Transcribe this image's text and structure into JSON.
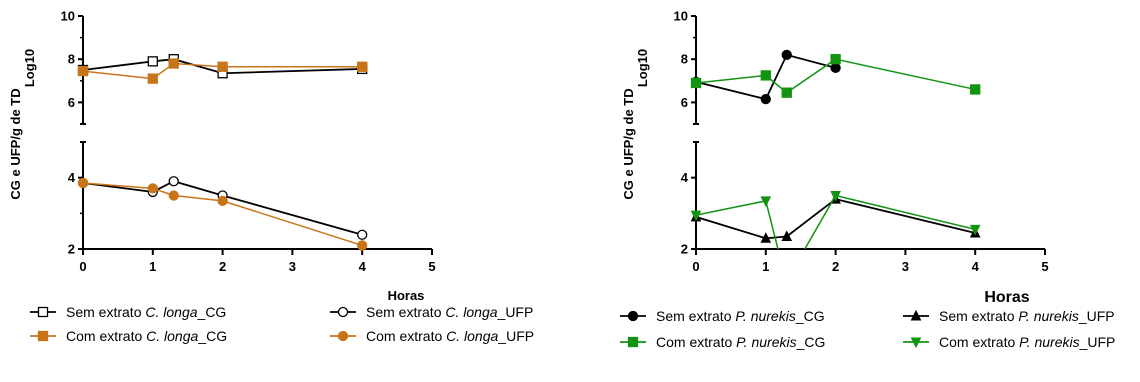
{
  "colors": {
    "black": "#000000",
    "orange": "#c8751a",
    "green": "#119411"
  },
  "chart_data": [
    {
      "type": "line",
      "ylabel_line1": "CG e UFP/g de TD",
      "ylabel_line2": "Log10",
      "xlabel": "Horas",
      "xlim": [
        0,
        5
      ],
      "x_ticks": [
        "0",
        "1",
        "2",
        "3",
        "4",
        "5"
      ],
      "upper_ylim": [
        5,
        10
      ],
      "upper_y_ticks": [
        "6",
        "8",
        "10"
      ],
      "lower_ylim": [
        2,
        5
      ],
      "lower_y_ticks": [
        "2",
        "4"
      ],
      "series": [
        {
          "name_prefix": "Sem extrato ",
          "name_species": "C. longa",
          "name_suffix": "_CG",
          "panel": "upper",
          "marker": "square",
          "filled": false,
          "color": "#000000",
          "x": [
            0,
            1,
            1.3,
            2,
            4
          ],
          "y": [
            7.5,
            7.9,
            8.0,
            7.35,
            7.55
          ]
        },
        {
          "name_prefix": "Sem extrato ",
          "name_species": "C. longa",
          "name_suffix": "_UFP",
          "panel": "lower",
          "marker": "circle",
          "filled": false,
          "color": "#000000",
          "x": [
            0,
            1,
            1.3,
            2,
            4
          ],
          "y": [
            3.85,
            3.6,
            3.9,
            3.5,
            2.4
          ]
        },
        {
          "name_prefix": "Com extrato ",
          "name_species": "C. longa",
          "name_suffix": "_CG",
          "panel": "upper",
          "marker": "square",
          "filled": true,
          "color": "#c8751a",
          "x": [
            0,
            1,
            1.3,
            2,
            4
          ],
          "y": [
            7.45,
            7.1,
            7.8,
            7.65,
            7.65
          ]
        },
        {
          "name_prefix": "Com extrato ",
          "name_species": "C. longa",
          "name_suffix": "_UFP",
          "panel": "lower",
          "marker": "circle",
          "filled": true,
          "color": "#c8751a",
          "x": [
            0,
            1,
            1.3,
            2,
            4
          ],
          "y": [
            3.85,
            3.7,
            3.5,
            3.35,
            2.1
          ]
        }
      ]
    },
    {
      "type": "line",
      "ylabel_line1": "CG e UFP/g de TD",
      "ylabel_line2": "Log10",
      "xlabel": "Horas",
      "xlim": [
        0,
        5
      ],
      "x_ticks": [
        "0",
        "1",
        "2",
        "3",
        "4",
        "5"
      ],
      "upper_ylim": [
        5,
        10
      ],
      "upper_y_ticks": [
        "6",
        "8",
        "10"
      ],
      "lower_ylim": [
        2,
        5
      ],
      "lower_y_ticks": [
        "2",
        "4"
      ],
      "series": [
        {
          "name_prefix": "Sem extrato ",
          "name_species": "P. nurekis",
          "name_suffix": "_CG",
          "panel": "upper",
          "marker": "circle",
          "filled": true,
          "color": "#000000",
          "x": [
            0,
            1,
            1.3,
            2
          ],
          "y": [
            6.95,
            6.15,
            8.2,
            7.6
          ]
        },
        {
          "name_prefix": "Sem extrato ",
          "name_species": "P. nurekis",
          "name_suffix": "_UFP",
          "panel": "lower",
          "marker": "triangle-up",
          "filled": true,
          "color": "#000000",
          "x": [
            0,
            1,
            1.3,
            2,
            4
          ],
          "y": [
            2.9,
            2.3,
            2.35,
            3.4,
            2.45
          ]
        },
        {
          "name_prefix": "Com extrato ",
          "name_species": "P. nurekis",
          "name_suffix": "_CG",
          "panel": "upper",
          "marker": "square",
          "filled": true,
          "color": "#119411",
          "x": [
            0,
            1,
            1.3,
            2,
            4
          ],
          "y": [
            6.9,
            7.25,
            6.45,
            8.0,
            6.6
          ]
        },
        {
          "name_prefix": "Com extrato ",
          "name_species": "P. nurekis",
          "name_suffix": "_UFP",
          "panel": "lower",
          "marker": "triangle-down",
          "filled": true,
          "color": "#119411",
          "x": [
            0,
            1,
            1.2,
            1.5,
            2,
            4
          ],
          "y": [
            2.95,
            3.35,
            1.8,
            1.8,
            3.5,
            2.55
          ]
        }
      ]
    }
  ]
}
